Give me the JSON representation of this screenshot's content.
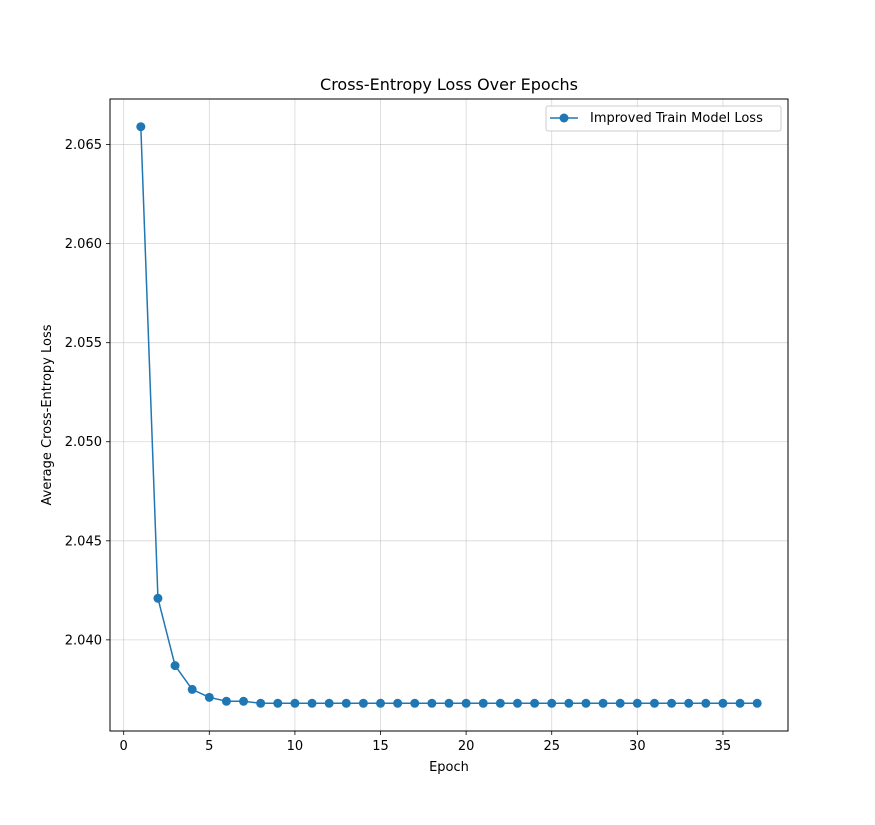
{
  "chart_data": {
    "type": "line",
    "title": "Cross-Entropy Loss Over Epochs",
    "xlabel": "Epoch",
    "ylabel": "Average Cross-Entropy Loss",
    "xlim": [
      -0.8,
      38.8
    ],
    "ylim": [
      2.0354,
      2.0673
    ],
    "xticks": [
      0,
      5,
      10,
      15,
      20,
      25,
      30,
      35
    ],
    "yticks": [
      2.04,
      2.045,
      2.05,
      2.055,
      2.06,
      2.065
    ],
    "xtick_labels": [
      "0",
      "5",
      "10",
      "15",
      "20",
      "25",
      "30",
      "35"
    ],
    "ytick_labels": [
      "2.040",
      "2.045",
      "2.050",
      "2.055",
      "2.060",
      "2.065"
    ],
    "grid": true,
    "legend_position": "top-right",
    "series": [
      {
        "name": "Improved Train Model Loss",
        "color": "#1f77b4",
        "marker": "circle",
        "x": [
          1,
          2,
          3,
          4,
          5,
          6,
          7,
          8,
          9,
          10,
          11,
          12,
          13,
          14,
          15,
          16,
          17,
          18,
          19,
          20,
          21,
          22,
          23,
          24,
          25,
          26,
          27,
          28,
          29,
          30,
          31,
          32,
          33,
          34,
          35,
          36,
          37
        ],
        "y": [
          2.0659,
          2.0421,
          2.0387,
          2.0375,
          2.0371,
          2.0369,
          2.0369,
          2.0368,
          2.0368,
          2.0368,
          2.0368,
          2.0368,
          2.0368,
          2.0368,
          2.0368,
          2.0368,
          2.0368,
          2.0368,
          2.0368,
          2.0368,
          2.0368,
          2.0368,
          2.0368,
          2.0368,
          2.0368,
          2.0368,
          2.0368,
          2.0368,
          2.0368,
          2.0368,
          2.0368,
          2.0368,
          2.0368,
          2.0368,
          2.0368,
          2.0368,
          2.0368
        ]
      }
    ]
  }
}
